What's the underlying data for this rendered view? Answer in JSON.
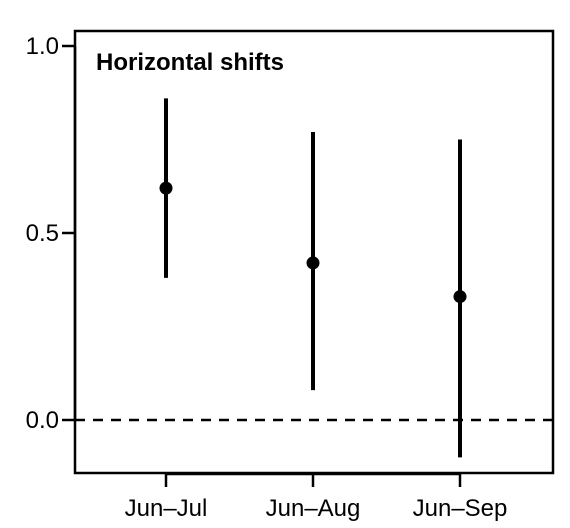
{
  "chart_data": {
    "type": "scatter",
    "title": "Horizontal shifts",
    "xlabel": "",
    "ylabel": "",
    "categories": [
      "Jun–Jul",
      "Jun–Aug",
      "Jun–Sep"
    ],
    "estimates": [
      0.62,
      0.42,
      0.33
    ],
    "lower": [
      0.38,
      0.08,
      -0.1
    ],
    "upper": [
      0.86,
      0.77,
      0.75
    ],
    "ylim": [
      -0.14,
      1.04
    ],
    "yticks": [
      0.0,
      0.5,
      1.0
    ],
    "ytick_labels": [
      "0.0",
      "0.5",
      "1.0"
    ],
    "reference_line": {
      "y": 0.0,
      "style": "dashed"
    },
    "grid": false,
    "legend": "none",
    "colors": {
      "marks": "#000000",
      "frame": "#000000",
      "background": "#ffffff"
    }
  }
}
